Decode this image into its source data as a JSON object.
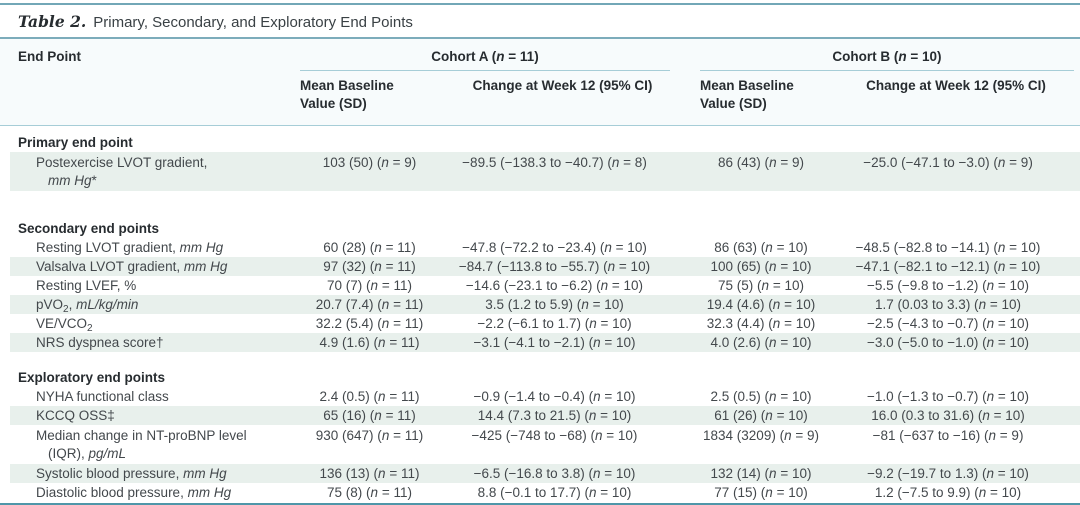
{
  "title": {
    "label": "Table 2.",
    "text": "Primary, Secondary, and Exploratory End Points"
  },
  "columns": {
    "end_point": "End Point",
    "cohort_a": "Cohort A (n = 11)",
    "cohort_b": "Cohort B (n = 10)",
    "baseline": "Mean Baseline Value (SD)",
    "change": "Change at Week 12 (95% CI)"
  },
  "colors": {
    "stripe": "#e8f0ec",
    "rule_light": "#a6cdd7",
    "rule_medium": "#72a7b7",
    "rule_bottom": "#4f96a9",
    "text": "#43484c",
    "heading_text": "#272c30"
  },
  "sections": [
    {
      "header": "Primary end point",
      "rows": [
        {
          "label": "Postexercise LVOT gradient,<span class=\"l2\"><i>mm Hg</i>*</span>",
          "lines": 2,
          "a_base": "103 (50) (n = 9)",
          "a_change": "−89.5 (−138.3 to −40.7) (n = 8)",
          "b_base": "86 (43) (n = 9)",
          "b_change": "−25.0 (−47.1 to −3.0) (n = 9)"
        }
      ]
    },
    {
      "header": "Secondary end points",
      "rows": [
        {
          "label": "Resting LVOT gradient, <i>mm Hg</i>",
          "a_base": "60 (28) (n = 11)",
          "a_change": "−47.8 (−72.2 to −23.4) (n = 10)",
          "b_base": "86 (63) (n = 10)",
          "b_change": "−48.5 (−82.8 to −14.1) (n = 10)"
        },
        {
          "label": "Valsalva LVOT gradient, <i>mm Hg</i>",
          "a_base": "97 (32) (n = 11)",
          "a_change": "−84.7 (−113.8 to −55.7) (n = 10)",
          "b_base": "100 (65) (n = 10)",
          "b_change": "−47.1 (−82.1 to −12.1) (n = 10)"
        },
        {
          "label": "Resting LVEF, %",
          "a_base": "70 (7) (n = 11)",
          "a_change": "−14.6 (−23.1 to −6.2) (n = 10)",
          "b_base": "75 (5) (n = 10)",
          "b_change": "−5.5 (−9.8 to −1.2) (n = 10)"
        },
        {
          "label": "pVO<sub>2</sub>, <i>mL/kg/min</i>",
          "a_base": "20.7 (7.4) (n = 11)",
          "a_change": "3.5 (1.2 to 5.9) (n = 10)",
          "b_base": "19.4 (4.6) (n = 10)",
          "b_change": "1.7 (0.03 to 3.3) (n = 10)"
        },
        {
          "label": "VE/VCO<sub>2</sub>",
          "a_base": "32.2 (5.4) (n = 11)",
          "a_change": "−2.2 (−6.1 to 1.7) (n = 10)",
          "b_base": "32.3 (4.4) (n = 10)",
          "b_change": "−2.5 (−4.3 to −0.7) (n = 10)"
        },
        {
          "label": "NRS dyspnea score†",
          "a_base": "4.9 (1.6) (n = 11)",
          "a_change": "−3.1 (−4.1 to −2.1) (n = 10)",
          "b_base": "4.0 (2.6) (n = 10)",
          "b_change": "−3.0 (−5.0 to −1.0) (n = 10)"
        }
      ]
    },
    {
      "header": "Exploratory end points",
      "rows": [
        {
          "label": "NYHA functional class",
          "a_base": "2.4 (0.5) (n = 11)",
          "a_change": "−0.9 (−1.4 to −0.4) (n = 10)",
          "b_base": "2.5 (0.5) (n = 10)",
          "b_change": "−1.0 (−1.3 to −0.7) (n = 10)"
        },
        {
          "label": "KCCQ OSS‡",
          "a_base": "65 (16) (n = 11)",
          "a_change": "14.4 (7.3 to 21.5) (n = 10)",
          "b_base": "61 (26) (n = 10)",
          "b_change": "16.0 (0.3 to 31.6) (n = 10)"
        },
        {
          "label": "Median change in NT-proBNP level<span class=\"l2\">(IQR), <i>pg/mL</i></span>",
          "lines": 2,
          "a_base": "930 (647) (n = 11)",
          "a_change": "−425 (−748 to −68) (n = 10)",
          "b_base": "1834 (3209) (n = 9)",
          "b_change": "−81 (−637 to −16) (n = 9)"
        },
        {
          "label": "Systolic blood pressure, <i>mm Hg</i>",
          "a_base": "136 (13) (n = 11)",
          "a_change": "−6.5 (−16.8 to 3.8) (n = 10)",
          "b_base": "132 (14) (n = 10)",
          "b_change": "−9.2 (−19.7 to 1.3) (n = 10)"
        },
        {
          "label": "Diastolic blood pressure, <i>mm Hg</i>",
          "a_base": "75 (8) (n = 11)",
          "a_change": "8.8 (−0.1 to 17.7) (n = 10)",
          "b_base": "77 (15) (n = 10)",
          "b_change": "1.2 (−7.5 to 9.9) (n = 10)"
        }
      ]
    }
  ]
}
